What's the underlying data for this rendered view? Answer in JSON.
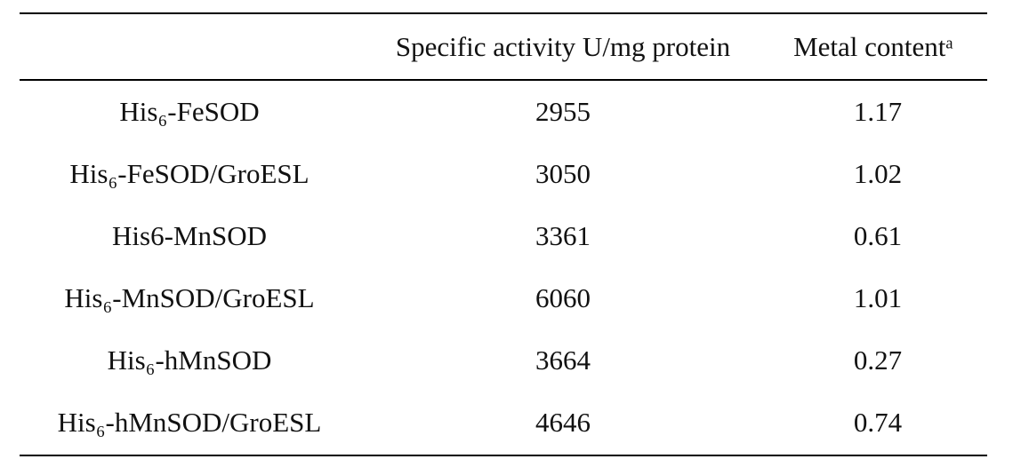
{
  "table": {
    "header": [
      "",
      "Specific activity U/mg protein",
      "Metal contentᵃ"
    ],
    "rows": [
      [
        "His₆-FeSOD",
        2955,
        1.17
      ],
      [
        "His₆-FeSOD/GroESL",
        3050,
        1.02
      ],
      [
        "His6-MnSOD",
        3361,
        0.61
      ],
      [
        "His₆-MnSOD/GroESL",
        6060,
        1.01
      ],
      [
        "His₆-hMnSOD",
        3664,
        0.27
      ],
      [
        "His₆-hMnSOD/GroESL",
        4646,
        0.74
      ]
    ]
  }
}
